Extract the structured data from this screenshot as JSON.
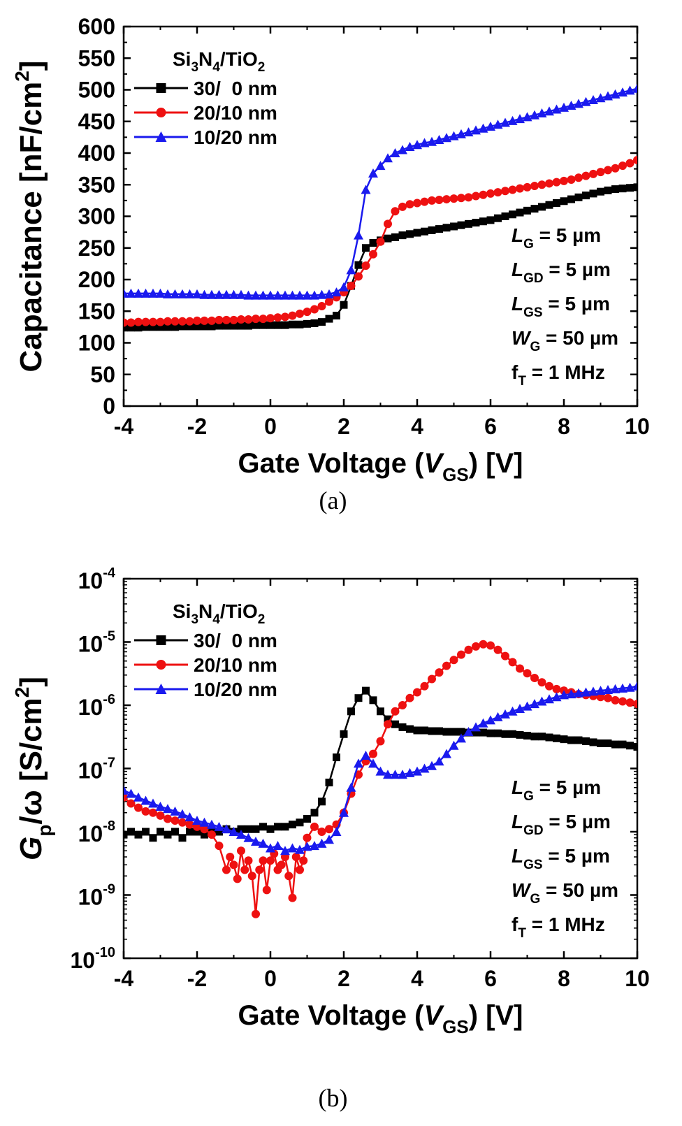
{
  "chart_data": [
    {
      "type": "line",
      "panel_label": "(a)",
      "xlabel": {
        "main": "Gate Voltage (",
        "var": "V",
        "sub": "GS",
        "tail": ") [V]"
      },
      "ylabel": {
        "main": "Capacitance [nF/cm",
        "sup": "2",
        "tail": "]"
      },
      "xlim": [
        -4,
        10
      ],
      "ylim": [
        0,
        600
      ],
      "x_ticks": [
        -4,
        -2,
        0,
        2,
        4,
        6,
        8,
        10
      ],
      "y_ticks": [
        0,
        50,
        100,
        150,
        200,
        250,
        300,
        350,
        400,
        450,
        500,
        550,
        600
      ],
      "legend": {
        "title": {
          "a": "Si",
          "s1": "3",
          "b": "N",
          "s2": "4",
          "c": "/TiO",
          "s3": "2"
        },
        "placement": "top-left"
      },
      "series": [
        {
          "name": "30/  0 nm",
          "color": "#000000",
          "marker": "square",
          "x": [
            -4,
            -3.8,
            -3.6,
            -3.4,
            -3.2,
            -3,
            -2.8,
            -2.6,
            -2.4,
            -2.2,
            -2,
            -1.8,
            -1.6,
            -1.4,
            -1.2,
            -1,
            -0.8,
            -0.6,
            -0.4,
            -0.2,
            0,
            0.2,
            0.4,
            0.6,
            0.8,
            1,
            1.2,
            1.4,
            1.6,
            1.8,
            2,
            2.2,
            2.4,
            2.6,
            2.8,
            3,
            3.2,
            3.4,
            3.6,
            3.8,
            4,
            4.2,
            4.4,
            4.6,
            4.8,
            5,
            5.2,
            5.4,
            5.6,
            5.8,
            6,
            6.2,
            6.4,
            6.6,
            6.8,
            7,
            7.2,
            7.4,
            7.6,
            7.8,
            8,
            8.2,
            8.4,
            8.6,
            8.8,
            9,
            9.2,
            9.4,
            9.6,
            9.8,
            10
          ],
          "y": [
            124,
            124,
            124,
            125,
            125,
            125,
            125,
            125,
            126,
            126,
            126,
            126,
            126,
            127,
            127,
            127,
            127,
            127,
            128,
            128,
            128,
            128,
            128,
            129,
            129,
            130,
            131,
            133,
            138,
            143,
            160,
            190,
            223,
            250,
            258,
            262,
            265,
            267,
            270,
            272,
            274,
            276,
            278,
            280,
            282,
            284,
            286,
            288,
            290,
            292,
            294,
            297,
            300,
            303,
            306,
            309,
            312,
            315,
            318,
            321,
            324,
            327,
            330,
            333,
            336,
            339,
            341,
            343,
            344,
            345,
            346
          ]
        },
        {
          "name": "20/10 nm",
          "color": "#ee1111",
          "marker": "circle",
          "x": [
            -4,
            -3.8,
            -3.6,
            -3.4,
            -3.2,
            -3,
            -2.8,
            -2.6,
            -2.4,
            -2.2,
            -2,
            -1.8,
            -1.6,
            -1.4,
            -1.2,
            -1,
            -0.8,
            -0.6,
            -0.4,
            -0.2,
            0,
            0.2,
            0.4,
            0.6,
            0.8,
            1,
            1.2,
            1.4,
            1.6,
            1.8,
            2,
            2.2,
            2.4,
            2.6,
            2.8,
            3,
            3.2,
            3.4,
            3.6,
            3.8,
            4,
            4.2,
            4.4,
            4.6,
            4.8,
            5,
            5.2,
            5.4,
            5.6,
            5.8,
            6,
            6.2,
            6.4,
            6.6,
            6.8,
            7,
            7.2,
            7.4,
            7.6,
            7.8,
            8,
            8.2,
            8.4,
            8.6,
            8.8,
            9,
            9.2,
            9.4,
            9.6,
            9.8,
            10
          ],
          "y": [
            132,
            132,
            133,
            133,
            133,
            133,
            134,
            134,
            134,
            134,
            135,
            135,
            135,
            136,
            136,
            136,
            137,
            137,
            138,
            138,
            139,
            140,
            141,
            143,
            146,
            149,
            153,
            158,
            165,
            172,
            180,
            190,
            205,
            222,
            240,
            260,
            288,
            308,
            315,
            319,
            321,
            323,
            325,
            326,
            327,
            328,
            329,
            330,
            332,
            334,
            336,
            338,
            340,
            342,
            344,
            346,
            348,
            350,
            352,
            354,
            356,
            358,
            361,
            364,
            367,
            370,
            373,
            376,
            380,
            384,
            389
          ]
        },
        {
          "name": "10/20 nm",
          "color": "#1a1aee",
          "marker": "triangle",
          "x": [
            -4,
            -3.8,
            -3.6,
            -3.4,
            -3.2,
            -3,
            -2.8,
            -2.6,
            -2.4,
            -2.2,
            -2,
            -1.8,
            -1.6,
            -1.4,
            -1.2,
            -1,
            -0.8,
            -0.6,
            -0.4,
            -0.2,
            0,
            0.2,
            0.4,
            0.6,
            0.8,
            1,
            1.2,
            1.4,
            1.6,
            1.8,
            2,
            2.2,
            2.4,
            2.6,
            2.8,
            3,
            3.2,
            3.4,
            3.6,
            3.8,
            4,
            4.2,
            4.4,
            4.6,
            4.8,
            5,
            5.2,
            5.4,
            5.6,
            5.8,
            6,
            6.2,
            6.4,
            6.6,
            6.8,
            7,
            7.2,
            7.4,
            7.6,
            7.8,
            8,
            8.2,
            8.4,
            8.6,
            8.8,
            9,
            9.2,
            9.4,
            9.6,
            9.8,
            10
          ],
          "y": [
            178,
            178,
            178,
            178,
            178,
            178,
            177,
            177,
            177,
            177,
            177,
            176,
            176,
            176,
            176,
            176,
            176,
            175,
            175,
            175,
            175,
            175,
            175,
            175,
            175,
            175,
            175,
            176,
            177,
            180,
            188,
            215,
            270,
            342,
            368,
            380,
            392,
            400,
            405,
            410,
            413,
            416,
            418,
            421,
            424,
            427,
            430,
            433,
            436,
            439,
            442,
            445,
            448,
            451,
            454,
            457,
            460,
            463,
            466,
            469,
            472,
            475,
            478,
            481,
            484,
            487,
            490,
            493,
            496,
            499,
            502
          ]
        }
      ],
      "annotations": [
        {
          "sym": "L",
          "sub": "G",
          "text": " = 5 µm"
        },
        {
          "sym": "L",
          "sub": "GD",
          "text": " = 5 µm"
        },
        {
          "sym": "L",
          "sub": "GS",
          "text": " = 5 µm"
        },
        {
          "sym": "W",
          "sub": "G",
          "text": " = 50 µm"
        },
        {
          "sym": "f",
          "sub": "T",
          "text": " = 1 MHz"
        }
      ]
    },
    {
      "type": "line",
      "panel_label": "(b)",
      "yscale": "log",
      "xlabel": {
        "main": "Gate Voltage (",
        "var": "V",
        "sub": "GS",
        "tail": ") [V]"
      },
      "ylabel": {
        "var": "G",
        "sub": "p",
        "mid": "/ω [S/cm",
        "sup": "2",
        "tail": "]"
      },
      "xlim": [
        -4,
        10
      ],
      "ylim_exp": [
        -10,
        -4
      ],
      "x_ticks": [
        -4,
        -2,
        0,
        2,
        4,
        6,
        8,
        10
      ],
      "y_tick_exponents": [
        -10,
        -9,
        -8,
        -7,
        -6,
        -5,
        -4
      ],
      "y_tick_base": "10",
      "legend": {
        "title": {
          "a": "Si",
          "s1": "3",
          "b": "N",
          "s2": "4",
          "c": "/TiO",
          "s3": "2"
        },
        "placement": "top-left"
      },
      "series": [
        {
          "name": "30/  0 nm",
          "color": "#000000",
          "marker": "square",
          "x": [
            -4,
            -3.8,
            -3.6,
            -3.4,
            -3.2,
            -3,
            -2.8,
            -2.6,
            -2.4,
            -2.2,
            -2,
            -1.8,
            -1.6,
            -1.4,
            -1.2,
            -1,
            -0.8,
            -0.6,
            -0.4,
            -0.2,
            0,
            0.2,
            0.4,
            0.6,
            0.8,
            1,
            1.2,
            1.4,
            1.6,
            1.8,
            2,
            2.2,
            2.4,
            2.6,
            2.8,
            3,
            3.2,
            3.4,
            3.6,
            3.8,
            4,
            4.2,
            4.4,
            4.6,
            4.8,
            5,
            5.2,
            5.4,
            5.6,
            5.8,
            6,
            6.2,
            6.4,
            6.6,
            6.8,
            7,
            7.2,
            7.4,
            7.6,
            7.8,
            8,
            8.2,
            8.4,
            8.6,
            8.8,
            9,
            9.2,
            9.4,
            9.6,
            9.8,
            10
          ],
          "y": [
            9e-09,
            1e-08,
            9e-09,
            1e-08,
            8e-09,
            1e-08,
            9e-09,
            1e-08,
            8e-09,
            1e-08,
            1e-08,
            9e-09,
            1.1e-08,
            1e-08,
            1.1e-08,
            1e-08,
            1.1e-08,
            1.1e-08,
            1.1e-08,
            1.2e-08,
            1.1e-08,
            1.2e-08,
            1.2e-08,
            1.3e-08,
            1.4e-08,
            1.6e-08,
            2e-08,
            3e-08,
            6e-08,
            1.5e-07,
            3.5e-07,
            8e-07,
            1.3e-06,
            1.7e-06,
            1.2e-06,
            8e-07,
            6e-07,
            5e-07,
            4.5e-07,
            4.2e-07,
            4e-07,
            4e-07,
            3.9e-07,
            3.9e-07,
            3.8e-07,
            3.8e-07,
            3.8e-07,
            3.7e-07,
            3.7e-07,
            3.7e-07,
            3.6e-07,
            3.6e-07,
            3.5e-07,
            3.5e-07,
            3.4e-07,
            3.3e-07,
            3.2e-07,
            3.2e-07,
            3.1e-07,
            3e-07,
            2.9e-07,
            2.8e-07,
            2.8e-07,
            2.7e-07,
            2.6e-07,
            2.5e-07,
            2.5e-07,
            2.4e-07,
            2.4e-07,
            2.3e-07,
            2.2e-07
          ]
        },
        {
          "name": "20/10 nm",
          "color": "#ee1111",
          "marker": "circle",
          "x": [
            -4,
            -3.8,
            -3.6,
            -3.4,
            -3.2,
            -3,
            -2.8,
            -2.6,
            -2.4,
            -2.2,
            -2,
            -1.8,
            -1.6,
            -1.4,
            -1.2,
            -1.1,
            -1,
            -0.9,
            -0.8,
            -0.7,
            -0.6,
            -0.5,
            -0.4,
            -0.3,
            -0.2,
            -0.1,
            0,
            0.1,
            0.2,
            0.3,
            0.4,
            0.5,
            0.6,
            0.7,
            0.8,
            0.9,
            1,
            1.2,
            1.4,
            1.6,
            1.8,
            2,
            2.2,
            2.4,
            2.6,
            2.8,
            3,
            3.2,
            3.4,
            3.6,
            3.8,
            4,
            4.2,
            4.4,
            4.6,
            4.8,
            5,
            5.2,
            5.4,
            5.6,
            5.8,
            6,
            6.2,
            6.4,
            6.6,
            6.8,
            7,
            7.2,
            7.4,
            7.6,
            7.8,
            8,
            8.2,
            8.4,
            8.6,
            8.8,
            9,
            9.2,
            9.4,
            9.6,
            9.8,
            10
          ],
          "y": [
            3.5e-08,
            2.8e-08,
            2.4e-08,
            2.1e-08,
            2e-08,
            1.8e-08,
            1.6e-08,
            1.5e-08,
            1.4e-08,
            1.3e-08,
            1.2e-08,
            1.1e-08,
            9e-09,
            6e-09,
            2.5e-09,
            4e-09,
            3e-09,
            1.8e-09,
            5e-09,
            2.5e-09,
            3.5e-09,
            2e-09,
            5e-10,
            2.5e-09,
            3.5e-09,
            1.2e-09,
            3.5e-09,
            4.5e-09,
            2.5e-09,
            3e-09,
            4e-09,
            2e-09,
            9e-10,
            4e-09,
            2.5e-09,
            3.5e-09,
            8e-09,
            1.2e-08,
            1e-08,
            1.1e-08,
            1.3e-08,
            2e-08,
            4e-08,
            8e-08,
            1.3e-07,
            1.7e-07,
            2.7e-07,
            5e-07,
            8e-07,
            1e-06,
            1.3e-06,
            1.6e-06,
            2e-06,
            2.6e-06,
            3.3e-06,
            4.2e-06,
            5.2e-06,
            6.3e-06,
            7.5e-06,
            8.5e-06,
            9.2e-06,
            8.8e-06,
            7.5e-06,
            6e-06,
            4.8e-06,
            3.8e-06,
            3.2e-06,
            2.7e-06,
            2.3e-06,
            2e-06,
            1.8e-06,
            1.7e-06,
            1.6e-06,
            1.5e-06,
            1.45e-06,
            1.4e-06,
            1.35e-06,
            1.3e-06,
            1.2e-06,
            1.15e-06,
            1.1e-06,
            1.05e-06
          ]
        },
        {
          "name": "10/20 nm",
          "color": "#1a1aee",
          "marker": "triangle",
          "x": [
            -4,
            -3.8,
            -3.6,
            -3.4,
            -3.2,
            -3,
            -2.8,
            -2.6,
            -2.4,
            -2.2,
            -2,
            -1.8,
            -1.6,
            -1.4,
            -1.2,
            -1,
            -0.8,
            -0.6,
            -0.4,
            -0.2,
            0,
            0.2,
            0.4,
            0.6,
            0.8,
            1,
            1.2,
            1.4,
            1.6,
            1.8,
            2,
            2.2,
            2.4,
            2.6,
            2.8,
            3,
            3.2,
            3.4,
            3.6,
            3.8,
            4,
            4.2,
            4.4,
            4.6,
            4.8,
            5,
            5.2,
            5.4,
            5.6,
            5.8,
            6,
            6.2,
            6.4,
            6.6,
            6.8,
            7,
            7.2,
            7.4,
            7.6,
            7.8,
            8,
            8.2,
            8.4,
            8.6,
            8.8,
            9,
            9.2,
            9.4,
            9.6,
            9.8,
            10
          ],
          "y": [
            4.5e-08,
            4e-08,
            3.5e-08,
            3.1e-08,
            2.8e-08,
            2.5e-08,
            2.3e-08,
            2.1e-08,
            1.9e-08,
            1.7e-08,
            1.5e-08,
            1.4e-08,
            1.3e-08,
            1.2e-08,
            1.1e-08,
            1e-08,
            9e-09,
            8e-09,
            7e-09,
            6.5e-09,
            5.5e-09,
            6e-09,
            5e-09,
            5.5e-09,
            5.2e-09,
            5.8e-09,
            6e-09,
            6.5e-09,
            7.5e-09,
            1e-08,
            2e-08,
            5e-08,
            1.2e-07,
            1.6e-07,
            1.2e-07,
            9e-08,
            8e-08,
            8e-08,
            8e-08,
            8.5e-08,
            9e-08,
            1e-07,
            1.1e-07,
            1.3e-07,
            1.7e-07,
            2.3e-07,
            3e-07,
            3.8e-07,
            4.5e-07,
            5.2e-07,
            5.8e-07,
            6.5e-07,
            7.2e-07,
            8e-07,
            8.8e-07,
            9.6e-07,
            1.05e-06,
            1.15e-06,
            1.25e-06,
            1.35e-06,
            1.45e-06,
            1.5e-06,
            1.55e-06,
            1.6e-06,
            1.65e-06,
            1.7e-06,
            1.75e-06,
            1.8e-06,
            1.85e-06,
            1.9e-06,
            2e-06
          ]
        }
      ],
      "annotations": [
        {
          "sym": "L",
          "sub": "G",
          "text": " = 5 µm"
        },
        {
          "sym": "L",
          "sub": "GD",
          "text": " = 5 µm"
        },
        {
          "sym": "L",
          "sub": "GS",
          "text": " = 5 µm"
        },
        {
          "sym": "W",
          "sub": "G",
          "text": " = 50 µm"
        },
        {
          "sym": "f",
          "sub": "T",
          "text": " = 1 MHz"
        }
      ]
    }
  ]
}
